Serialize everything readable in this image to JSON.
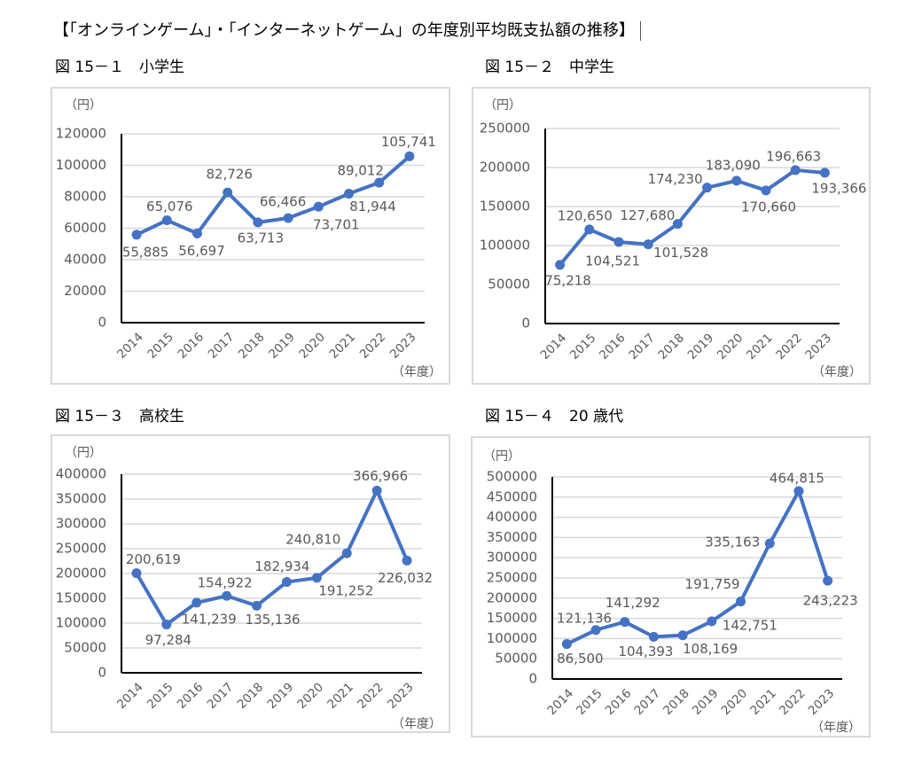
{
  "page": {
    "title": "【「オンラインゲーム」・「インターネットゲーム」の年度別平均既支払額の推移】"
  },
  "chart_data": [
    {
      "type": "line",
      "figure_label": "図 15－１　小学生",
      "ylabel": "（円）",
      "xlabel": "（年度）",
      "categories": [
        "2014",
        "2015",
        "2016",
        "2017",
        "2018",
        "2019",
        "2020",
        "2021",
        "2022",
        "2023"
      ],
      "values": [
        55885,
        65076,
        56697,
        82726,
        63713,
        66466,
        73701,
        81944,
        89012,
        105741
      ],
      "data_labels": [
        "55,885",
        "65,076",
        "56,697",
        "82,726",
        "63,713",
        "66,466",
        "73,701",
        "81,944",
        "89,012",
        "105,741"
      ],
      "ylim": [
        0,
        120000
      ],
      "yticks": [
        "0",
        "20000",
        "40000",
        "60000",
        "80000",
        "100000",
        "120000"
      ],
      "grid": true,
      "color": "#4472C4"
    },
    {
      "type": "line",
      "figure_label": "図 15－２　中学生",
      "ylabel": "（円）",
      "xlabel": "（年度）",
      "categories": [
        "2014",
        "2015",
        "2016",
        "2017",
        "2018",
        "2019",
        "2020",
        "2021",
        "2022",
        "2023"
      ],
      "values": [
        75218,
        120650,
        104521,
        101528,
        127680,
        174230,
        183090,
        170660,
        196663,
        193366
      ],
      "data_labels": [
        "75,218",
        "120,650",
        "104,521",
        "101,528",
        "127,680",
        "174,230",
        "183,090",
        "170,660",
        "196,663",
        "193,366"
      ],
      "ylim": [
        0,
        250000
      ],
      "yticks": [
        "0",
        "50000",
        "100000",
        "150000",
        "200000",
        "250000"
      ],
      "grid": true,
      "color": "#4472C4"
    },
    {
      "type": "line",
      "figure_label": "図 15－３　高校生",
      "ylabel": "（円）",
      "xlabel": "（年度）",
      "categories": [
        "2014",
        "2015",
        "2016",
        "2017",
        "2018",
        "2019",
        "2020",
        "2021",
        "2022",
        "2023"
      ],
      "values": [
        200619,
        97284,
        141239,
        154922,
        135136,
        182934,
        191252,
        240810,
        366966,
        226032
      ],
      "data_labels": [
        "200,619",
        "97,284",
        "141,239",
        "154,922",
        "135,136",
        "182,934",
        "191,252",
        "240,810",
        "366,966",
        "226,032"
      ],
      "ylim": [
        0,
        400000
      ],
      "yticks": [
        "0",
        "50000",
        "100000",
        "150000",
        "200000",
        "250000",
        "300000",
        "350000",
        "400000"
      ],
      "grid": true,
      "color": "#4472C4"
    },
    {
      "type": "line",
      "figure_label": "図 15－４　20 歳代",
      "ylabel": "（円）",
      "xlabel": "（年度）",
      "categories": [
        "2014",
        "2015",
        "2016",
        "2017",
        "2018",
        "2019",
        "2020",
        "2021",
        "2022",
        "2023"
      ],
      "values": [
        86500,
        121136,
        141292,
        104393,
        108169,
        142751,
        191759,
        335163,
        464815,
        243223
      ],
      "data_labels": [
        "86,500",
        "121,136",
        "141,292",
        "104,393",
        "108,169",
        "142,751",
        "191,759",
        "335,163",
        "464,815",
        "243,223"
      ],
      "ylim": [
        0,
        500000
      ],
      "yticks": [
        "0",
        "50000",
        "100000",
        "150000",
        "200000",
        "250000",
        "300000",
        "350000",
        "400000",
        "450000",
        "500000"
      ],
      "grid": true,
      "color": "#4472C4"
    }
  ]
}
